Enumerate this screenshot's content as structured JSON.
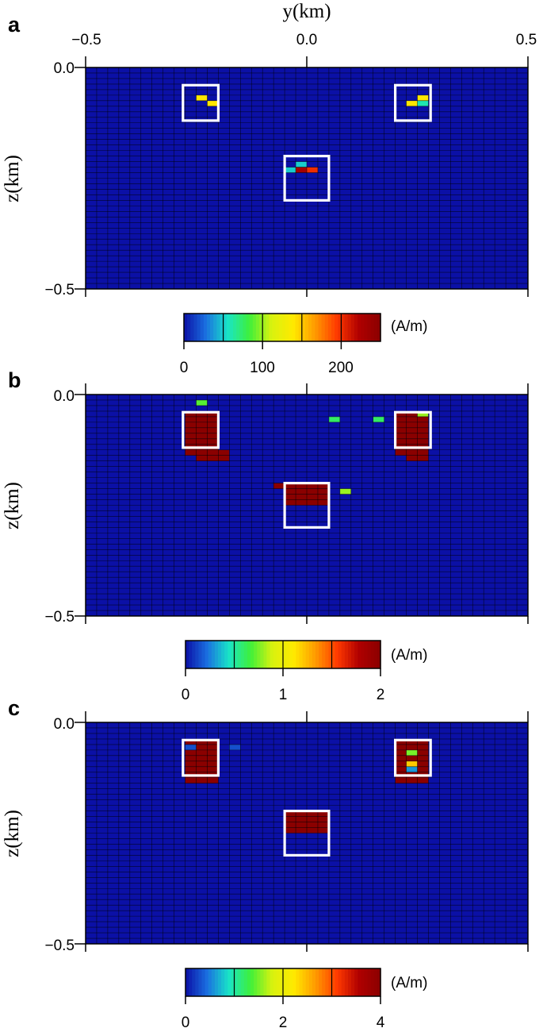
{
  "chart_data": [
    {
      "type": "heatmap",
      "panel_label": "a",
      "xlabel": "y(km)",
      "ylabel": "z(km)",
      "xlim": [
        -0.5,
        0.5
      ],
      "ylim": [
        0.0,
        -0.5
      ],
      "x_ticks": [
        "−0.5",
        "0.0",
        "0.5"
      ],
      "y_ticks": [
        "0.0",
        "−0.5"
      ],
      "grid": true,
      "cells_y": 40,
      "cells_z": 40,
      "background_value": 0,
      "cells": [
        {
          "iy": 10,
          "iz": 5,
          "value": 140
        },
        {
          "iy": 11,
          "iz": 6,
          "value": 140
        },
        {
          "iy": 30,
          "iz": 5,
          "value": 140
        },
        {
          "iy": 29,
          "iz": 6,
          "value": 140
        },
        {
          "iy": 30,
          "iz": 6,
          "value": 60
        },
        {
          "iy": 19,
          "iz": 17,
          "value": 50
        },
        {
          "iy": 18,
          "iz": 18,
          "value": 50
        },
        {
          "iy": 19,
          "iz": 18,
          "value": 230
        },
        {
          "iy": 20,
          "iz": 18,
          "value": 200
        }
      ],
      "boxes": [
        {
          "y": [
            -0.28,
            -0.2
          ],
          "z": [
            -0.04,
            -0.12
          ]
        },
        {
          "y": [
            0.2,
            0.28
          ],
          "z": [
            -0.04,
            -0.12
          ]
        },
        {
          "y": [
            -0.05,
            0.05
          ],
          "z": [
            -0.2,
            -0.3
          ]
        }
      ],
      "colorbar": {
        "min": 0,
        "max": 250,
        "ticks": [
          "0",
          "100",
          "200"
        ],
        "tick_values": [
          0,
          100,
          200
        ],
        "dividers": [
          50,
          100,
          150,
          200
        ],
        "unit": "(A/m)"
      }
    },
    {
      "type": "heatmap",
      "panel_label": "b",
      "xlabel": "",
      "ylabel": "z(km)",
      "xlim": [
        -0.5,
        0.5
      ],
      "ylim": [
        0.0,
        -0.5
      ],
      "x_ticks": [],
      "y_ticks": [
        "0.0",
        "−0.5"
      ],
      "grid": true,
      "cells_y": 40,
      "cells_z": 40,
      "background_value": 0,
      "blobs": [
        {
          "y": [
            -0.28,
            -0.2
          ],
          "z": [
            -0.04,
            -0.12
          ],
          "value": 2.0
        },
        {
          "y": [
            -0.24,
            -0.18
          ],
          "z": [
            -0.12,
            -0.14
          ],
          "value": 2.0
        },
        {
          "y": [
            0.2,
            0.28
          ],
          "z": [
            -0.04,
            -0.12
          ],
          "value": 2.0
        },
        {
          "y": [
            0.22,
            0.28
          ],
          "z": [
            -0.12,
            -0.14
          ],
          "value": 2.0
        },
        {
          "y": [
            -0.05,
            0.05
          ],
          "z": [
            -0.2,
            -0.24
          ],
          "value": 2.0
        },
        {
          "y": [
            -0.04,
            0.04
          ],
          "z": [
            -0.2,
            -0.2
          ],
          "value": 2.0
        }
      ],
      "cells": [
        {
          "iy": 10,
          "iz": 1,
          "value": 0.7
        },
        {
          "iy": 22,
          "iz": 4,
          "value": 0.6
        },
        {
          "iy": 26,
          "iz": 4,
          "value": 0.6
        },
        {
          "iy": 30,
          "iz": 3,
          "value": 0.8
        },
        {
          "iy": 17,
          "iz": 16,
          "value": 2.0
        },
        {
          "iy": 23,
          "iz": 17,
          "value": 0.8
        },
        {
          "iy": 19,
          "iz": 16,
          "value": 2.0
        }
      ],
      "boxes": [
        {
          "y": [
            -0.28,
            -0.2
          ],
          "z": [
            -0.04,
            -0.12
          ]
        },
        {
          "y": [
            0.2,
            0.28
          ],
          "z": [
            -0.04,
            -0.12
          ]
        },
        {
          "y": [
            -0.05,
            0.05
          ],
          "z": [
            -0.2,
            -0.3
          ]
        }
      ],
      "colorbar": {
        "min": 0,
        "max": 2,
        "ticks": [
          "0",
          "1",
          "2"
        ],
        "tick_values": [
          0,
          1,
          2
        ],
        "dividers": [
          0.5,
          1.0,
          1.5
        ],
        "unit": "(A/m)"
      }
    },
    {
      "type": "heatmap",
      "panel_label": "c",
      "xlabel": "",
      "ylabel": "z(km)",
      "xlim": [
        -0.5,
        0.5
      ],
      "ylim": [
        0.0,
        -0.5
      ],
      "x_ticks": [],
      "y_ticks": [
        "0.0",
        "−0.5"
      ],
      "grid": true,
      "cells_y": 40,
      "cells_z": 40,
      "background_value": 0,
      "blobs": [
        {
          "y": [
            -0.28,
            -0.2
          ],
          "z": [
            -0.04,
            -0.12
          ],
          "value": 4.0
        },
        {
          "y": [
            -0.24,
            -0.2
          ],
          "z": [
            -0.12,
            -0.13
          ],
          "value": 4.0
        },
        {
          "y": [
            0.2,
            0.28
          ],
          "z": [
            -0.04,
            -0.12
          ],
          "value": 4.0
        },
        {
          "y": [
            0.22,
            0.26
          ],
          "z": [
            -0.12,
            -0.13
          ],
          "value": 4.0
        },
        {
          "y": [
            -0.04,
            0.04
          ],
          "z": [
            -0.2,
            -0.24
          ],
          "value": 4.0
        }
      ],
      "cells": [
        {
          "iy": 9,
          "iz": 4,
          "value": 0.3
        },
        {
          "iy": 13,
          "iz": 4,
          "value": 0.3
        },
        {
          "iy": 29,
          "iz": 5,
          "value": 1.5
        },
        {
          "iy": 29,
          "iz": 7,
          "value": 2.4
        },
        {
          "iy": 29,
          "iz": 8,
          "value": 0.6
        }
      ],
      "boxes": [
        {
          "y": [
            -0.28,
            -0.2
          ],
          "z": [
            -0.04,
            -0.12
          ]
        },
        {
          "y": [
            0.2,
            0.28
          ],
          "z": [
            -0.04,
            -0.12
          ]
        },
        {
          "y": [
            -0.05,
            0.05
          ],
          "z": [
            -0.2,
            -0.3
          ]
        }
      ],
      "colorbar": {
        "min": 0,
        "max": 4,
        "ticks": [
          "0",
          "2",
          "4"
        ],
        "tick_values": [
          0,
          2,
          4
        ],
        "dividers": [
          1,
          2,
          3
        ],
        "unit": "(A/m)"
      }
    }
  ],
  "colors": {
    "background": "#0a1aa8",
    "grid_line": "#000000",
    "box": "#ffffff",
    "colormap": [
      "#0b10a6",
      "#1a6fe0",
      "#19e4c8",
      "#3ff03a",
      "#d8f20f",
      "#ffea00",
      "#ff9a00",
      "#ff3a00",
      "#b00000",
      "#8a0000"
    ]
  }
}
